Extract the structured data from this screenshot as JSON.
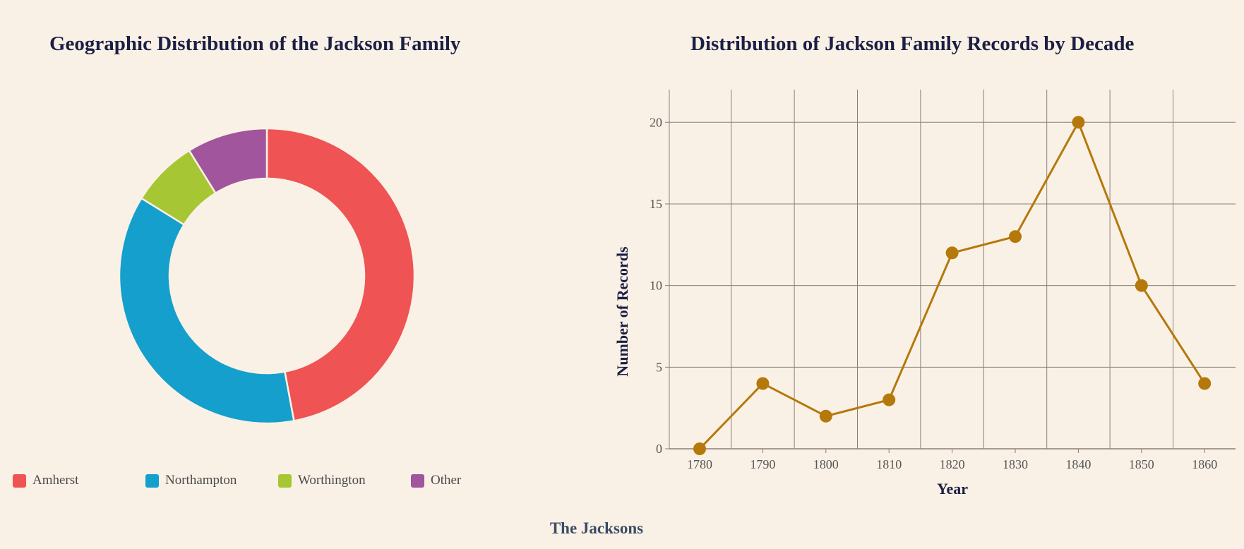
{
  "footer": "The Jacksons",
  "chart_data": [
    {
      "type": "pie",
      "variant": "donut",
      "title": "Geographic Distribution of the Jackson Family",
      "categories": [
        "Amherst",
        "Northampton",
        "Worthington",
        "Other"
      ],
      "values": [
        32,
        25,
        5,
        6
      ],
      "colors": [
        "#ef5353",
        "#149fcd",
        "#a7c634",
        "#a0559c"
      ],
      "legend": "bottom"
    },
    {
      "type": "line",
      "title": "Distribution of Jackson Family Records by Decade",
      "xlabel": "Year",
      "ylabel": "Number of Records",
      "x": [
        1780,
        1790,
        1800,
        1810,
        1820,
        1830,
        1840,
        1850,
        1860
      ],
      "values": [
        0,
        4,
        2,
        3,
        12,
        13,
        20,
        10,
        4
      ],
      "yticks": [
        0,
        5,
        10,
        15,
        20
      ],
      "ylim": [
        0,
        22
      ],
      "grid": true,
      "color": "#b5780a"
    }
  ]
}
